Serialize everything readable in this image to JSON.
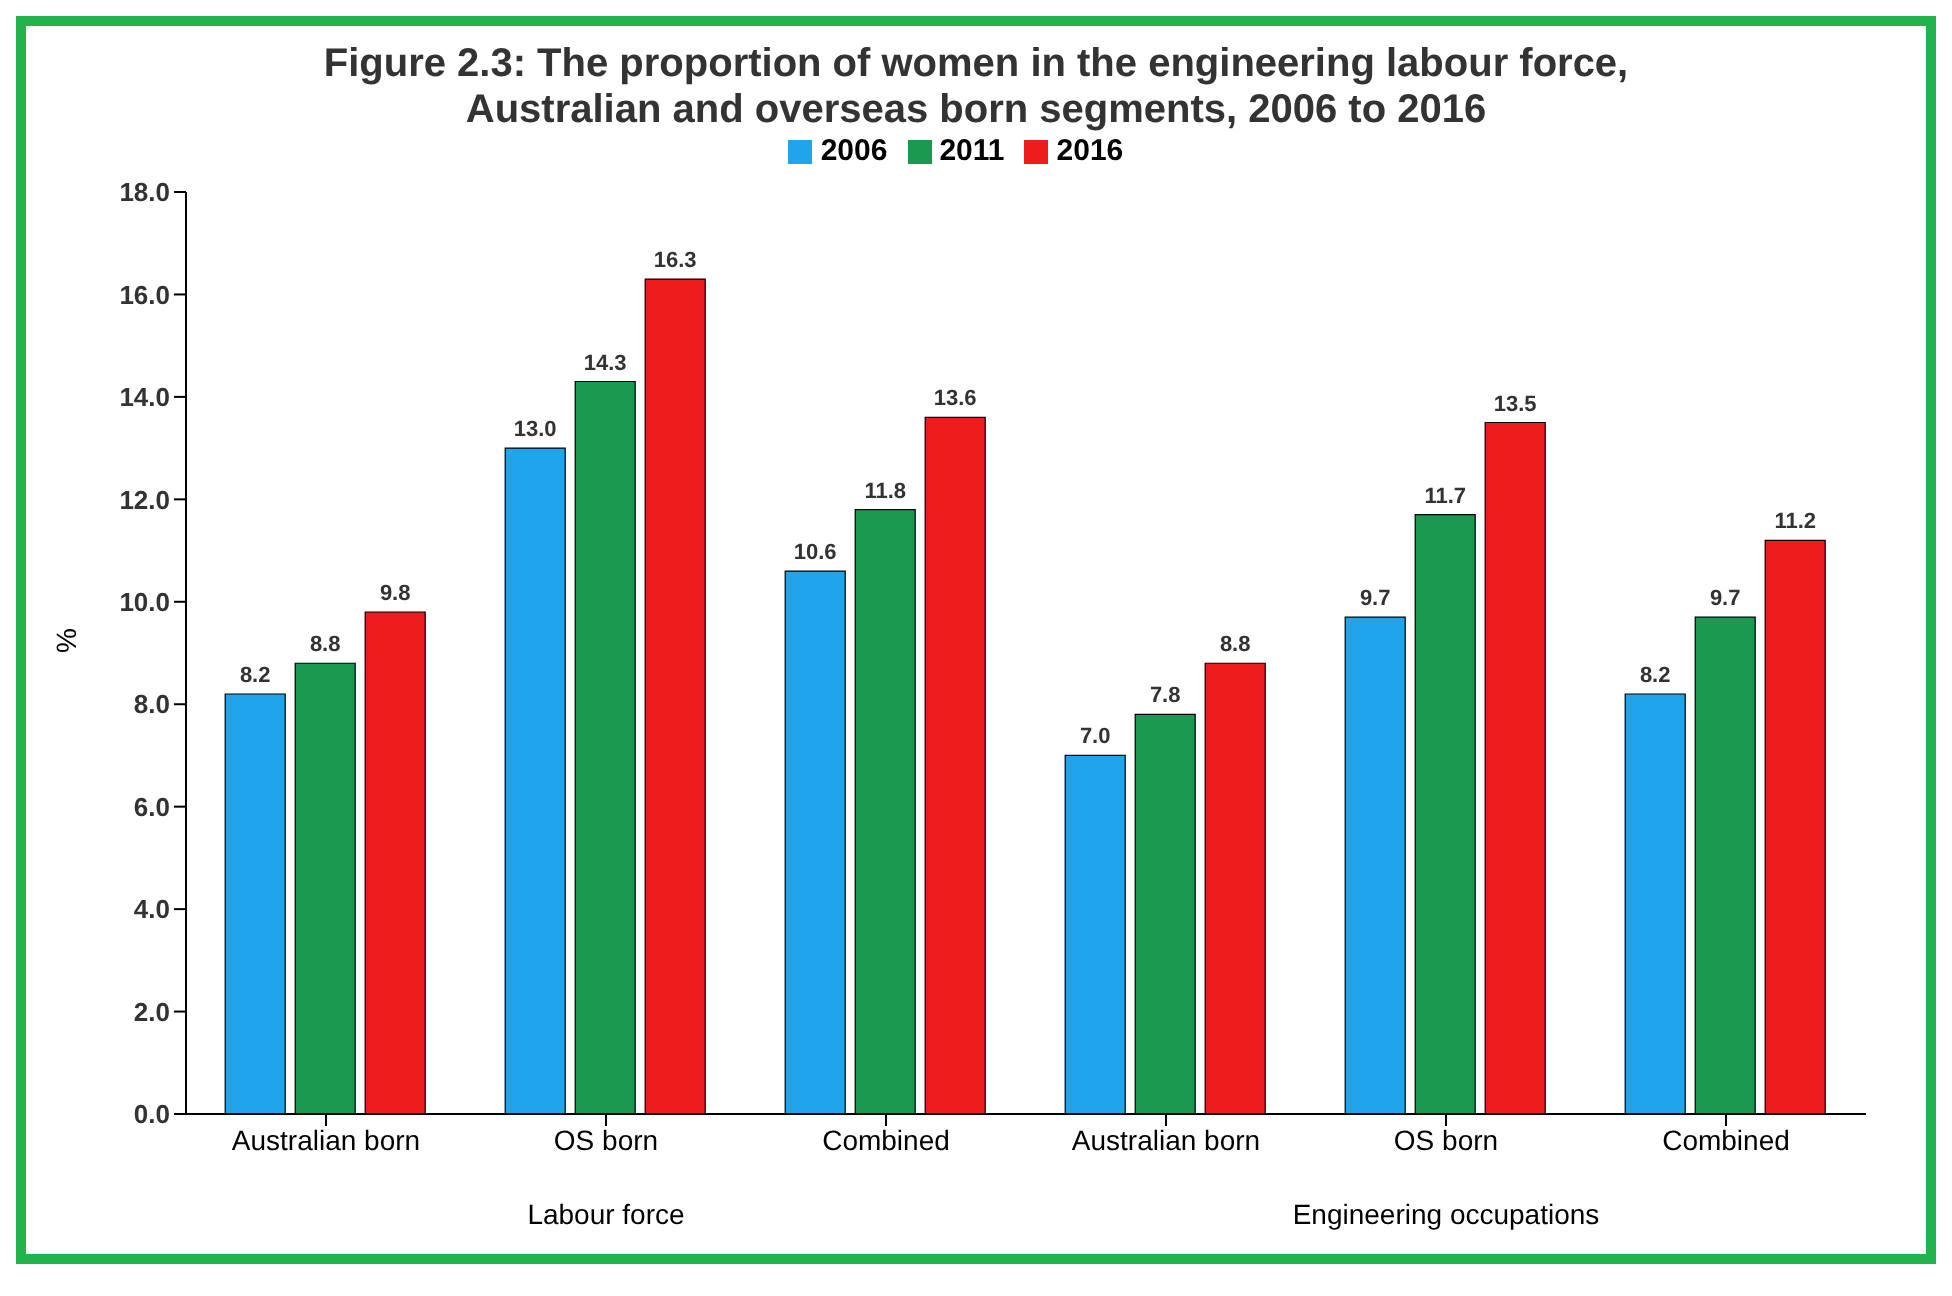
{
  "chart_data": {
    "type": "bar",
    "title": "Figure 2.3: The proportion of women in the engineering labour force,\nAustralian and overseas born segments, 2006 to 2016",
    "categories": [
      "Australian born",
      "OS born",
      "Combined",
      "Australian born",
      "OS born",
      "Combined"
    ],
    "series": [
      {
        "name": "2006",
        "color": "#1ea5ec",
        "values": [
          8.2,
          13.0,
          10.6,
          7.0,
          9.7,
          8.2
        ],
        "value_labels": [
          "8.2",
          "13.0",
          "10.6",
          "7.0",
          "9.7",
          "8.2"
        ]
      },
      {
        "name": "2011",
        "color": "#1a9a50",
        "values": [
          8.8,
          14.3,
          11.8,
          7.8,
          11.7,
          9.7
        ],
        "value_labels": [
          "8.8",
          "14.3",
          "11.8",
          "7.8",
          "11.7",
          "9.7"
        ]
      },
      {
        "name": "2016",
        "color": "#ee1c1c",
        "values": [
          9.8,
          16.3,
          13.6,
          8.8,
          13.5,
          11.2
        ],
        "value_labels": [
          "9.8",
          "16.3",
          "13.6",
          "8.8",
          "13.5",
          "11.2"
        ]
      }
    ],
    "ylabel": "%",
    "ylim": [
      0,
      18
    ],
    "yticks": [
      {
        "value": 0,
        "label": "0.0"
      },
      {
        "value": 2,
        "label": "2.0"
      },
      {
        "value": 4,
        "label": "4.0"
      },
      {
        "value": 6,
        "label": "6.0"
      },
      {
        "value": 8,
        "label": "8.0"
      },
      {
        "value": 10,
        "label": "10.0"
      },
      {
        "value": 12,
        "label": "12.0"
      },
      {
        "value": 14,
        "label": "14.0"
      },
      {
        "value": 16,
        "label": "16.0"
      },
      {
        "value": 18,
        "label": "18.0"
      }
    ],
    "annotations": [
      "Labour force",
      "Engineering occupations"
    ],
    "grid": false,
    "legend": "top"
  }
}
